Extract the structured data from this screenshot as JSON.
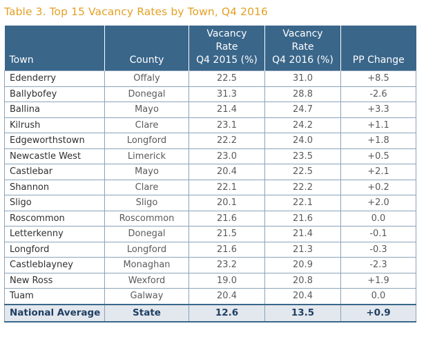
{
  "caption": "Table 3. Top 15 Vacancy Rates by Town, Q4 2016",
  "columns": {
    "town": "Town",
    "county": "County",
    "q4_2015_line1": "Vacancy Rate",
    "q4_2015_line2": "Q4 2015 (%)",
    "q4_2016_line1": "Vacancy Rate",
    "q4_2016_line2": "Q4 2016 (%)",
    "pp_change": "PP Change"
  },
  "rows": [
    {
      "town": "Edenderry",
      "county": "Offaly",
      "q4_2015": "22.5",
      "q4_2016": "31.0",
      "pp_change": "+8.5"
    },
    {
      "town": "Ballybofey",
      "county": "Donegal",
      "q4_2015": "31.3",
      "q4_2016": "28.8",
      "pp_change": "-2.6"
    },
    {
      "town": "Ballina",
      "county": "Mayo",
      "q4_2015": "21.4",
      "q4_2016": "24.7",
      "pp_change": "+3.3"
    },
    {
      "town": "Kilrush",
      "county": "Clare",
      "q4_2015": "23.1",
      "q4_2016": "24.2",
      "pp_change": "+1.1"
    },
    {
      "town": "Edgeworthstown",
      "county": "Longford",
      "q4_2015": "22.2",
      "q4_2016": "24.0",
      "pp_change": "+1.8"
    },
    {
      "town": "Newcastle West",
      "county": "Limerick",
      "q4_2015": "23.0",
      "q4_2016": "23.5",
      "pp_change": "+0.5"
    },
    {
      "town": "Castlebar",
      "county": "Mayo",
      "q4_2015": "20.4",
      "q4_2016": "22.5",
      "pp_change": "+2.1"
    },
    {
      "town": "Shannon",
      "county": "Clare",
      "q4_2015": "22.1",
      "q4_2016": "22.2",
      "pp_change": "+0.2"
    },
    {
      "town": "Sligo",
      "county": "Sligo",
      "q4_2015": "20.1",
      "q4_2016": "22.1",
      "pp_change": "+2.0"
    },
    {
      "town": "Roscommon",
      "county": "Roscommon",
      "q4_2015": "21.6",
      "q4_2016": "21.6",
      "pp_change": "0.0"
    },
    {
      "town": "Letterkenny",
      "county": "Donegal",
      "q4_2015": "21.5",
      "q4_2016": "21.4",
      "pp_change": "-0.1"
    },
    {
      "town": "Longford",
      "county": "Longford",
      "q4_2015": "21.6",
      "q4_2016": "21.3",
      "pp_change": "-0.3"
    },
    {
      "town": "Castleblayney",
      "county": "Monaghan",
      "q4_2015": "23.2",
      "q4_2016": "20.9",
      "pp_change": "-2.3"
    },
    {
      "town": "New Ross",
      "county": "Wexford",
      "q4_2015": "19.0",
      "q4_2016": "20.8",
      "pp_change": "+1.9"
    },
    {
      "town": "Tuam",
      "county": "Galway",
      "q4_2015": "20.4",
      "q4_2016": "20.4",
      "pp_change": "0.0"
    }
  ],
  "national": {
    "town": "National Average",
    "county": "State",
    "q4_2015": "12.6",
    "q4_2016": "13.5",
    "pp_change": "+0.9"
  },
  "colors": {
    "caption": "#e3a024",
    "header_bg": "#3a668a",
    "footer_bg": "#e3e8ee",
    "footer_text": "#1f3f63",
    "grid": "#8aa2b9"
  }
}
